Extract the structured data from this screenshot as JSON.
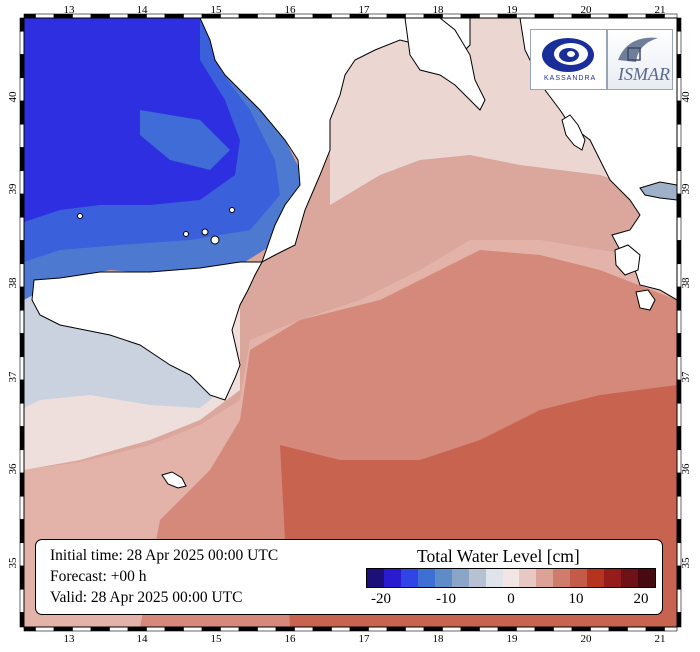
{
  "map": {
    "lon_labels": [
      "13",
      "14",
      "15",
      "16",
      "17",
      "18",
      "19",
      "20",
      "21"
    ],
    "lat_labels": [
      "35",
      "36",
      "37",
      "38",
      "39",
      "40"
    ]
  },
  "info": {
    "initial": "Initial time: 28 Apr 2025 00:00 UTC",
    "forecast": "Forecast: +00 h",
    "valid": "Valid: 28 Apr 2025 00:00 UTC"
  },
  "legend": {
    "title": "Total Water Level [cm]",
    "colors": [
      "#1c0f7a",
      "#2b1bd0",
      "#2f45e6",
      "#3e6fd4",
      "#5d8cc9",
      "#8ba5c9",
      "#b6c2d4",
      "#dfe3ea",
      "#f2e6e4",
      "#e8c8c2",
      "#dca298",
      "#d07c6c",
      "#c45a48",
      "#b5341f",
      "#941d1c",
      "#6e1218",
      "#460a10"
    ],
    "ticks": [
      "-20",
      "-10",
      "0",
      "10",
      "20"
    ]
  },
  "logos": {
    "kassandra": "KASSANDRA",
    "ismar": "ISMAR"
  }
}
